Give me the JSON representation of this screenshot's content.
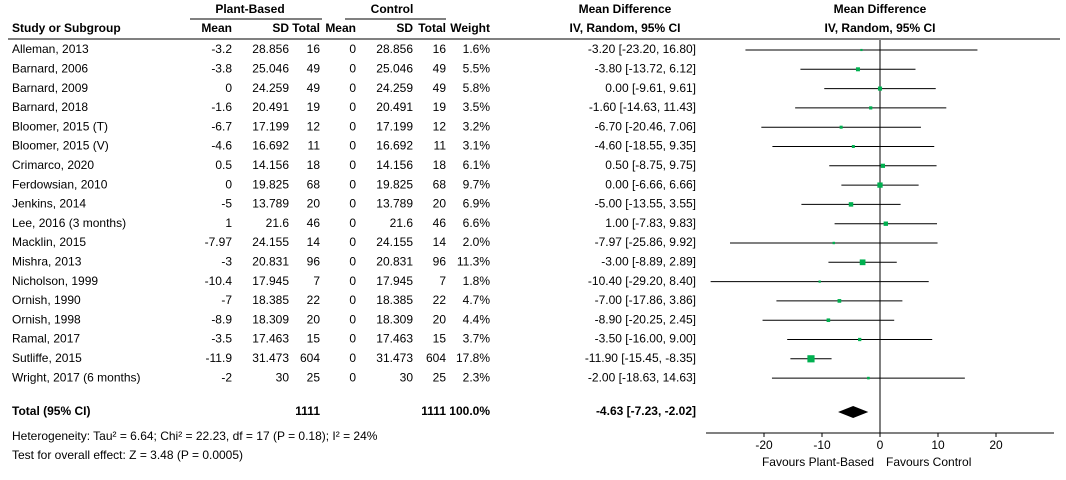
{
  "chart_data": {
    "type": "forest",
    "group_headers": {
      "plant": "Plant-Based",
      "control": "Control",
      "md": "Mean Difference",
      "plot": "Mean Difference"
    },
    "column_headers": {
      "study": "Study or Subgroup",
      "pb_mean": "Mean",
      "pb_sd": "SD",
      "pb_total": "Total",
      "c_mean": "Mean",
      "c_sd": "SD",
      "c_total": "Total",
      "weight": "Weight",
      "md": "IV, Random, 95% CI",
      "plot": "IV, Random, 95% CI"
    },
    "studies": [
      {
        "name": "Alleman, 2013",
        "pb_mean": -3.2,
        "pb_sd": 28.856,
        "pb_total": 16,
        "c_mean": 0,
        "c_sd": 28.856,
        "c_total": 16,
        "weight": 1.6,
        "weight_label": "1.6%",
        "md": -3.2,
        "ci": [
          -23.2,
          16.8
        ],
        "md_label": "-3.20 [-23.20, 16.80]"
      },
      {
        "name": "Barnard, 2006",
        "pb_mean": -3.8,
        "pb_sd": 25.046,
        "pb_total": 49,
        "c_mean": 0,
        "c_sd": 25.046,
        "c_total": 49,
        "weight": 5.5,
        "weight_label": "5.5%",
        "md": -3.8,
        "ci": [
          -13.72,
          6.12
        ],
        "md_label": "-3.80 [-13.72, 6.12]"
      },
      {
        "name": "Barnard, 2009",
        "pb_mean": 0,
        "pb_sd": 24.259,
        "pb_total": 49,
        "c_mean": 0,
        "c_sd": 24.259,
        "c_total": 49,
        "weight": 5.8,
        "weight_label": "5.8%",
        "md": 0,
        "ci": [
          -9.61,
          9.61
        ],
        "md_label": "0.00 [-9.61, 9.61]"
      },
      {
        "name": "Barnard, 2018",
        "pb_mean": -1.6,
        "pb_sd": 20.491,
        "pb_total": 19,
        "c_mean": 0,
        "c_sd": 20.491,
        "c_total": 19,
        "weight": 3.5,
        "weight_label": "3.5%",
        "md": -1.6,
        "ci": [
          -14.63,
          11.43
        ],
        "md_label": "-1.60 [-14.63, 11.43]"
      },
      {
        "name": "Bloomer, 2015 (T)",
        "pb_mean": -6.7,
        "pb_sd": 17.199,
        "pb_total": 12,
        "c_mean": 0,
        "c_sd": 17.199,
        "c_total": 12,
        "weight": 3.2,
        "weight_label": "3.2%",
        "md": -6.7,
        "ci": [
          -20.46,
          7.06
        ],
        "md_label": "-6.70 [-20.46, 7.06]"
      },
      {
        "name": "Bloomer, 2015 (V)",
        "pb_mean": -4.6,
        "pb_sd": 16.692,
        "pb_total": 11,
        "c_mean": 0,
        "c_sd": 16.692,
        "c_total": 11,
        "weight": 3.1,
        "weight_label": "3.1%",
        "md": -4.6,
        "ci": [
          -18.55,
          9.35
        ],
        "md_label": "-4.60 [-18.55, 9.35]"
      },
      {
        "name": "Crimarco, 2020",
        "pb_mean": 0.5,
        "pb_sd": 14.156,
        "pb_total": 18,
        "c_mean": 0,
        "c_sd": 14.156,
        "c_total": 18,
        "weight": 6.1,
        "weight_label": "6.1%",
        "md": 0.5,
        "ci": [
          -8.75,
          9.75
        ],
        "md_label": "0.50 [-8.75, 9.75]"
      },
      {
        "name": "Ferdowsian, 2010",
        "pb_mean": 0,
        "pb_sd": 19.825,
        "pb_total": 68,
        "c_mean": 0,
        "c_sd": 19.825,
        "c_total": 68,
        "weight": 9.7,
        "weight_label": "9.7%",
        "md": 0,
        "ci": [
          -6.66,
          6.66
        ],
        "md_label": "0.00 [-6.66, 6.66]"
      },
      {
        "name": "Jenkins, 2014",
        "pb_mean": -5,
        "pb_sd": 13.789,
        "pb_total": 20,
        "c_mean": 0,
        "c_sd": 13.789,
        "c_total": 20,
        "weight": 6.9,
        "weight_label": "6.9%",
        "md": -5,
        "ci": [
          -13.55,
          3.55
        ],
        "md_label": "-5.00 [-13.55, 3.55]"
      },
      {
        "name": "Lee, 2016 (3 months)",
        "pb_mean": 1,
        "pb_sd": 21.6,
        "pb_total": 46,
        "c_mean": 0,
        "c_sd": 21.6,
        "c_total": 46,
        "weight": 6.6,
        "weight_label": "6.6%",
        "md": 1,
        "ci": [
          -7.83,
          9.83
        ],
        "md_label": "1.00 [-7.83, 9.83]"
      },
      {
        "name": "Macklin, 2015",
        "pb_mean": -7.97,
        "pb_sd": 24.155,
        "pb_total": 14,
        "c_mean": 0,
        "c_sd": 24.155,
        "c_total": 14,
        "weight": 2.0,
        "weight_label": "2.0%",
        "md": -7.97,
        "ci": [
          -25.86,
          9.92
        ],
        "md_label": "-7.97 [-25.86, 9.92]"
      },
      {
        "name": "Mishra, 2013",
        "pb_mean": -3,
        "pb_sd": 20.831,
        "pb_total": 96,
        "c_mean": 0,
        "c_sd": 20.831,
        "c_total": 96,
        "weight": 11.3,
        "weight_label": "11.3%",
        "md": -3,
        "ci": [
          -8.89,
          2.89
        ],
        "md_label": "-3.00 [-8.89, 2.89]"
      },
      {
        "name": "Nicholson, 1999",
        "pb_mean": -10.4,
        "pb_sd": 17.945,
        "pb_total": 7,
        "c_mean": 0,
        "c_sd": 17.945,
        "c_total": 7,
        "weight": 1.8,
        "weight_label": "1.8%",
        "md": -10.4,
        "ci": [
          -29.2,
          8.4
        ],
        "md_label": "-10.40 [-29.20, 8.40]"
      },
      {
        "name": "Ornish, 1990",
        "pb_mean": -7,
        "pb_sd": 18.385,
        "pb_total": 22,
        "c_mean": 0,
        "c_sd": 18.385,
        "c_total": 22,
        "weight": 4.7,
        "weight_label": "4.7%",
        "md": -7,
        "ci": [
          -17.86,
          3.86
        ],
        "md_label": "-7.00 [-17.86, 3.86]"
      },
      {
        "name": "Ornish, 1998",
        "pb_mean": -8.9,
        "pb_sd": 18.309,
        "pb_total": 20,
        "c_mean": 0,
        "c_sd": 18.309,
        "c_total": 20,
        "weight": 4.4,
        "weight_label": "4.4%",
        "md": -8.9,
        "ci": [
          -20.25,
          2.45
        ],
        "md_label": "-8.90 [-20.25, 2.45]"
      },
      {
        "name": "Ramal, 2017",
        "pb_mean": -3.5,
        "pb_sd": 17.463,
        "pb_total": 15,
        "c_mean": 0,
        "c_sd": 17.463,
        "c_total": 15,
        "weight": 3.7,
        "weight_label": "3.7%",
        "md": -3.5,
        "ci": [
          -16.0,
          9.0
        ],
        "md_label": "-3.50 [-16.00, 9.00]"
      },
      {
        "name": "Sutliffe, 2015",
        "pb_mean": -11.9,
        "pb_sd": 31.473,
        "pb_total": 604,
        "c_mean": 0,
        "c_sd": 31.473,
        "c_total": 604,
        "weight": 17.8,
        "weight_label": "17.8%",
        "md": -11.9,
        "ci": [
          -15.45,
          -8.35
        ],
        "md_label": "-11.90 [-15.45, -8.35]"
      },
      {
        "name": "Wright, 2017 (6 months)",
        "pb_mean": -2,
        "pb_sd": 30,
        "pb_total": 25,
        "c_mean": 0,
        "c_sd": 30,
        "c_total": 25,
        "weight": 2.3,
        "weight_label": "2.3%",
        "md": -2,
        "ci": [
          -18.63,
          14.63
        ],
        "md_label": "-2.00 [-18.63, 14.63]"
      }
    ],
    "total": {
      "name": "Total (95% CI)",
      "pb_total": 1111,
      "c_total": 1111,
      "weight": 100.0,
      "weight_label": "100.0%",
      "md": -4.63,
      "ci": [
        -7.23,
        -2.02
      ],
      "md_label": "-4.63 [-7.23, -2.02]"
    },
    "heterogeneity": "Heterogeneity: Tau² = 6.64; Chi² = 22.23, df = 17 (P = 0.18); I² = 24%",
    "overall_effect": "Test for overall effect: Z = 3.48 (P = 0.0005)",
    "xlim": [
      -30,
      30
    ],
    "xticks": [
      -20,
      -10,
      0,
      10,
      20
    ],
    "favours": [
      "Favours Plant-Based",
      "Favours Control"
    ],
    "square_color": "#00b050",
    "diamond_color": "#000000"
  }
}
